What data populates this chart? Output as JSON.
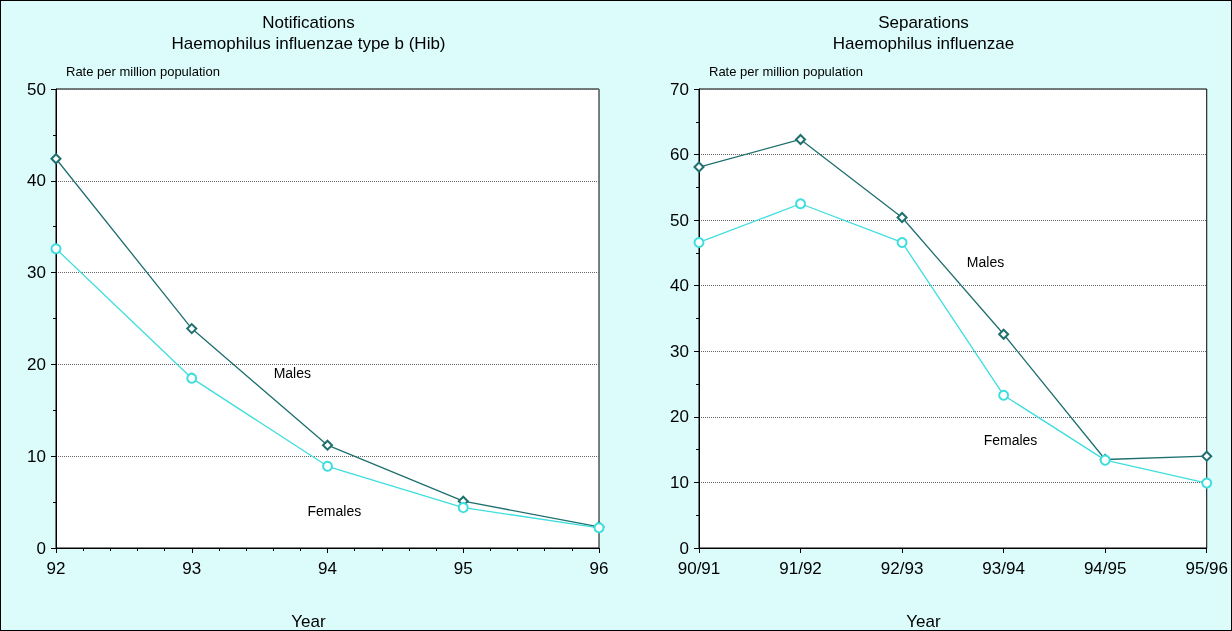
{
  "chart_data": [
    {
      "type": "line",
      "title": "Notifications",
      "subtitle": "Haemophilus influenzae type b (Hib)",
      "xlabel": "Year",
      "ylabel": "Rate per million population",
      "x": [
        92,
        93,
        94,
        95,
        96
      ],
      "xlim": [
        92,
        96
      ],
      "xticks": [
        92,
        93,
        94,
        95,
        96
      ],
      "ylim": [
        0,
        50
      ],
      "yticks": [
        0,
        10,
        20,
        30,
        40,
        50
      ],
      "grid": "y",
      "series": [
        {
          "name": "Males",
          "color": "#1f6f6f",
          "marker": "diamond",
          "values": [
            42.4,
            23.9,
            11.2,
            5.1,
            2.3
          ]
        },
        {
          "name": "Females",
          "color": "#3fdede",
          "marker": "circle",
          "values": [
            32.6,
            18.5,
            8.9,
            4.4,
            2.2
          ]
        }
      ]
    },
    {
      "type": "line",
      "title": "Separations",
      "subtitle": "Haemophilus influenzae",
      "xlabel": "Year",
      "ylabel": "Rate per million population",
      "categories": [
        "90/91",
        "91/92",
        "92/93",
        "93/94",
        "94/95",
        "95/96"
      ],
      "ylim": [
        0,
        70
      ],
      "yticks": [
        0,
        10,
        20,
        30,
        40,
        50,
        60,
        70
      ],
      "grid": "y",
      "series": [
        {
          "name": "Males",
          "color": "#1f6f6f",
          "marker": "diamond",
          "values": [
            58.1,
            62.3,
            50.4,
            32.6,
            13.5,
            14.0
          ]
        },
        {
          "name": "Females",
          "color": "#3fdede",
          "marker": "circle",
          "values": [
            46.6,
            52.5,
            46.6,
            23.3,
            13.4,
            9.9
          ]
        }
      ]
    }
  ]
}
